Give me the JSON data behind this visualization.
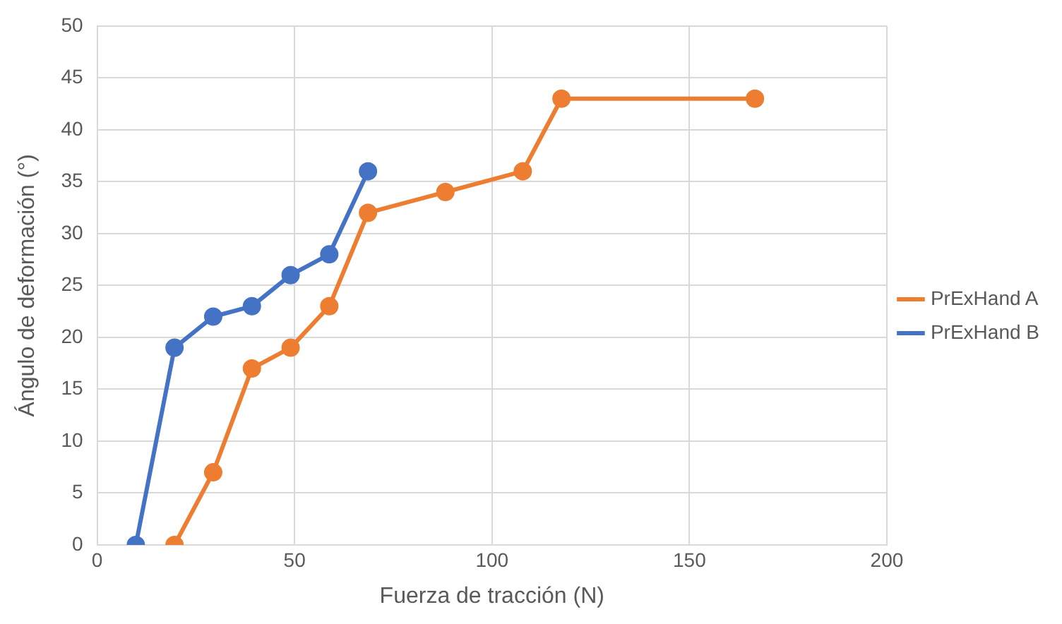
{
  "chart_data": {
    "type": "line",
    "xlabel": "Fuerza de tracción (N)",
    "ylabel": "Ángulo de deformación (°)",
    "xlim": [
      0,
      200
    ],
    "xticks": [
      0,
      50,
      100,
      150,
      200
    ],
    "ylim": [
      0,
      50
    ],
    "yticks": [
      0,
      5,
      10,
      15,
      20,
      25,
      30,
      35,
      40,
      45,
      50
    ],
    "grid": true,
    "legend": "right",
    "marker": "circle",
    "line_style": "solid",
    "series": [
      {
        "name": "PrExHand A",
        "color": "#ed7d31",
        "x": [
          19.6,
          29.4,
          39.2,
          49,
          58.8,
          68.6,
          88.2,
          107.8,
          117.6,
          166.6
        ],
        "values": [
          0,
          7,
          17,
          19,
          23,
          32,
          34,
          36,
          43,
          43
        ]
      },
      {
        "name": "PrExHand B",
        "color": "#4472c4",
        "x": [
          9.8,
          19.6,
          29.4,
          39.2,
          49,
          58.8,
          68.6
        ],
        "values": [
          0,
          19,
          22,
          23,
          26,
          28,
          36
        ]
      }
    ]
  }
}
